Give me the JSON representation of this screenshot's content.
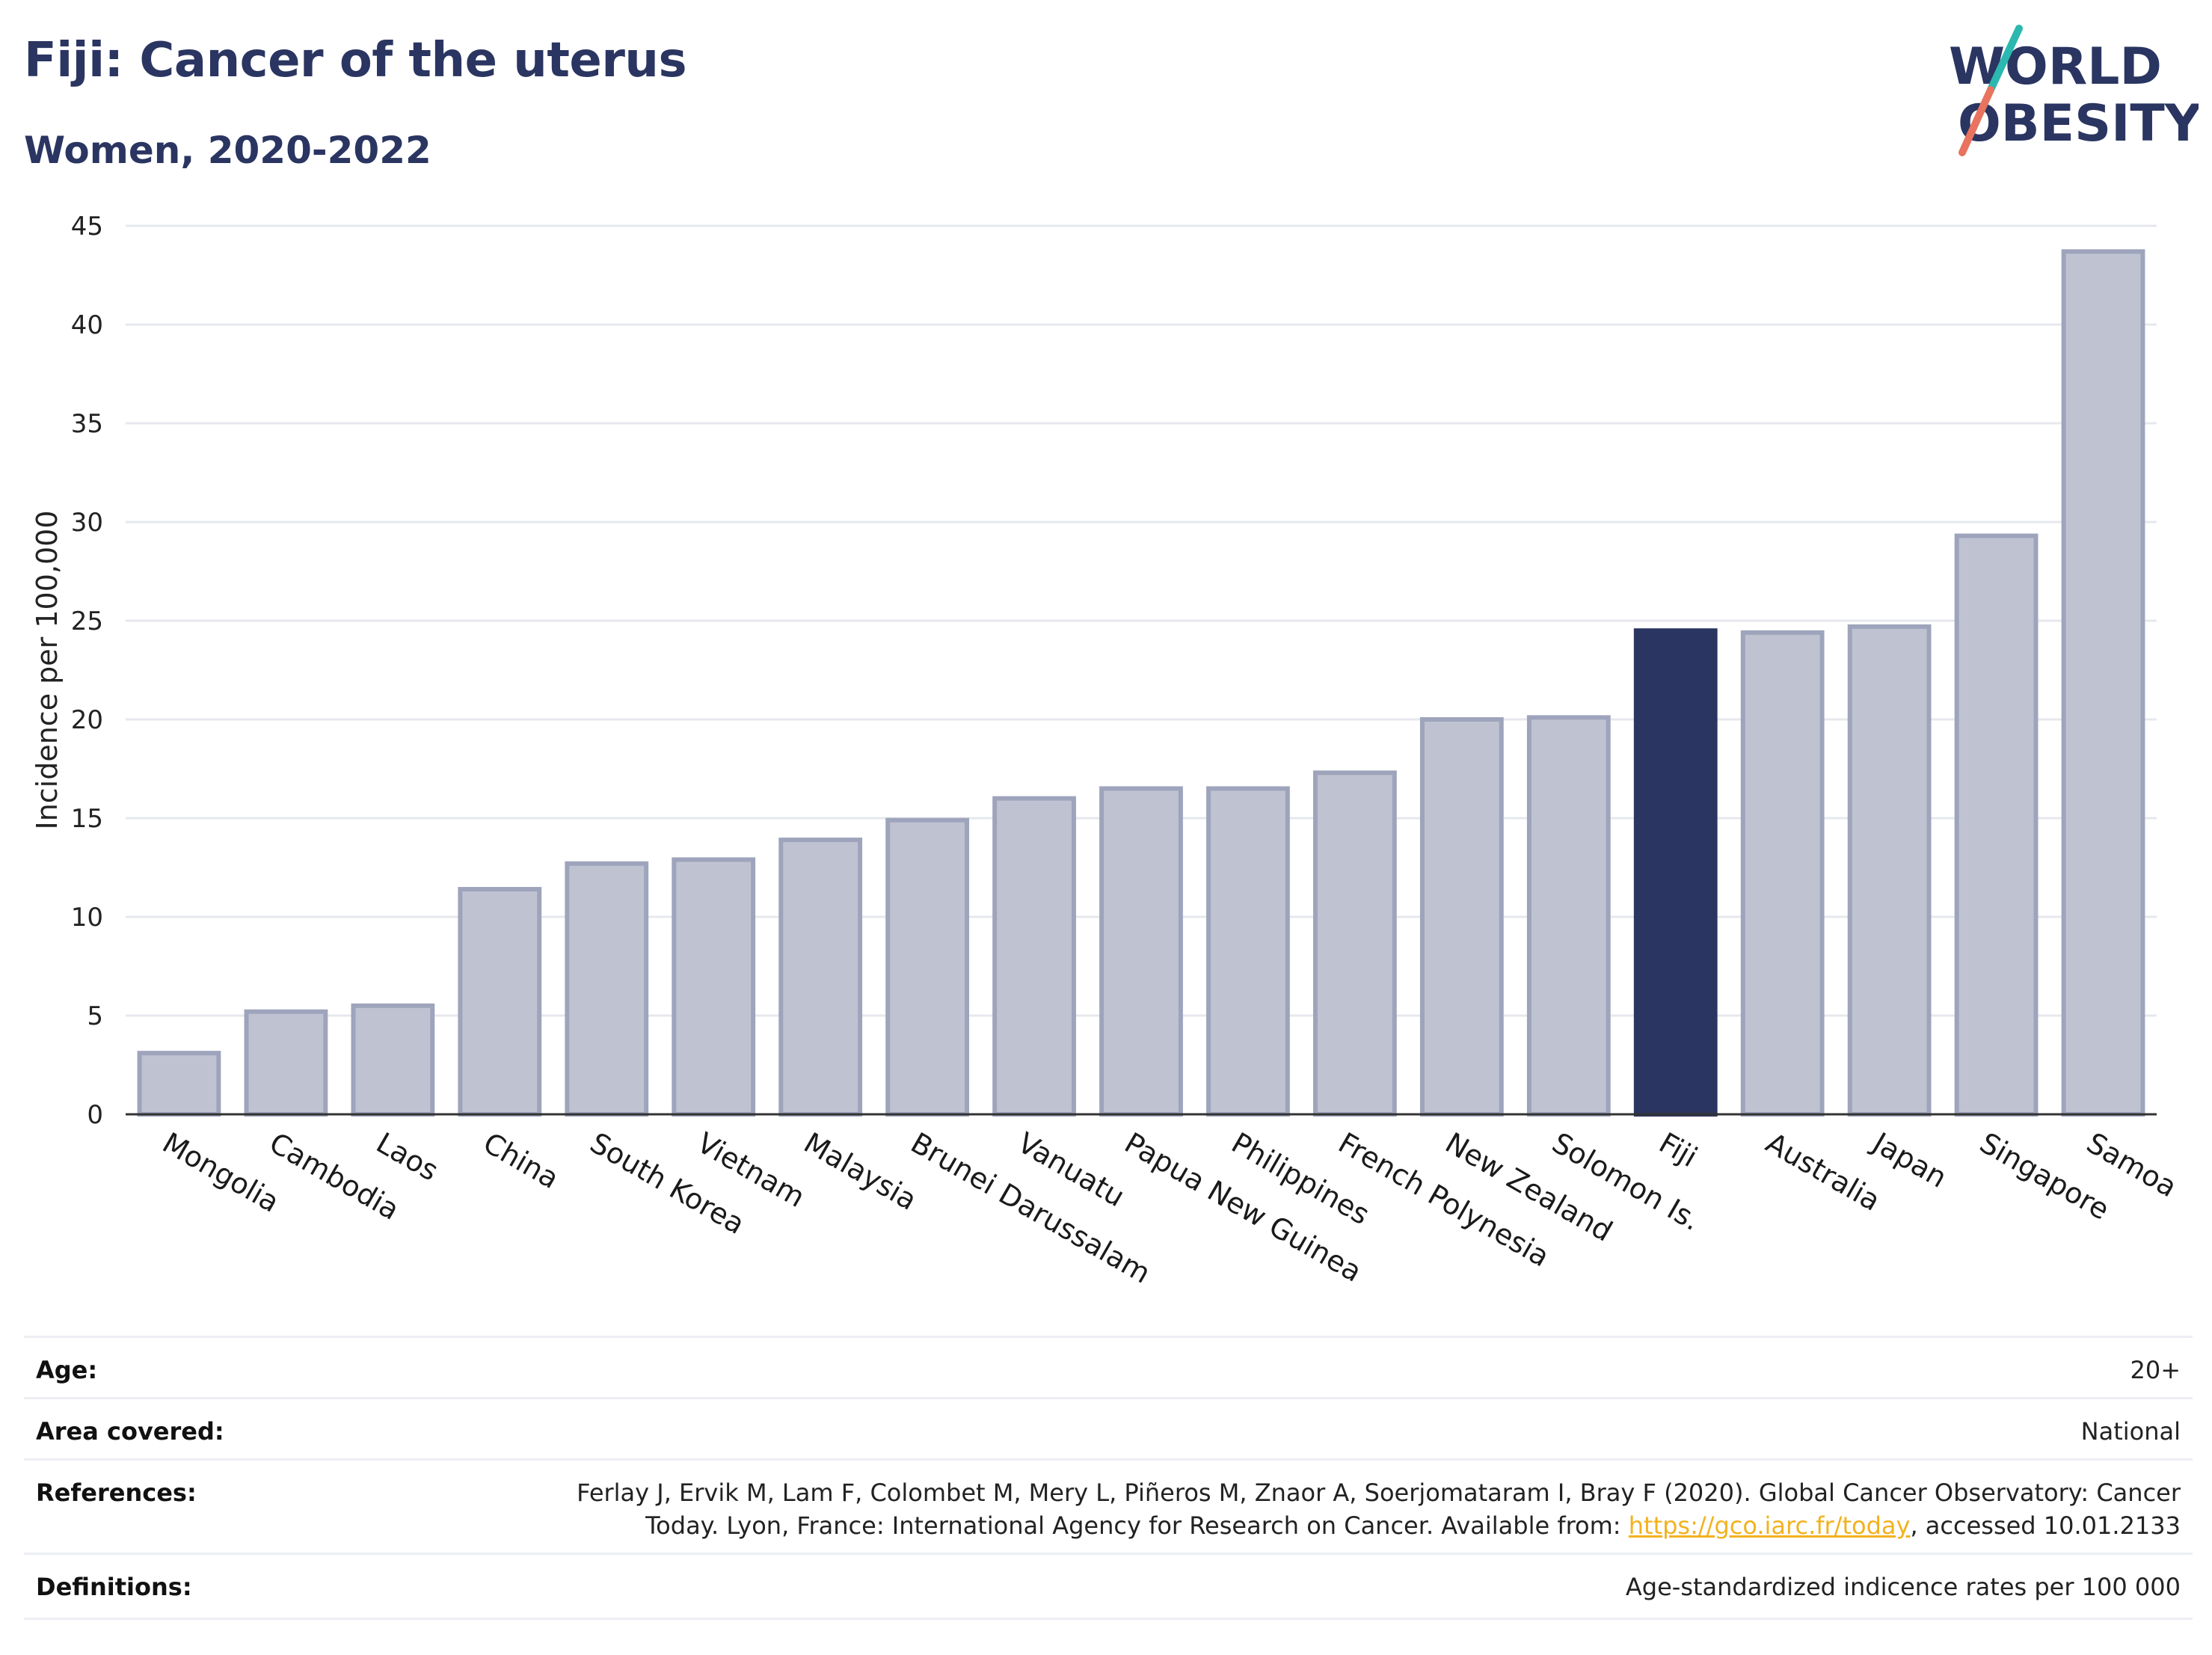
{
  "title": "Fiji: Cancer of the uterus",
  "subtitle": "Women, 2020-2022",
  "logo": {
    "line1": "WORLD",
    "line2": "OBESITY",
    "accent_colors": [
      "#2bb8b0",
      "#e8735f"
    ],
    "text_color": "#2a3561"
  },
  "colors": {
    "bar": "#bfc3d1",
    "bar_stroke": "#9ea4bb",
    "highlight": "#2a3561",
    "grid": "#e6e8ee",
    "axis": "#333333"
  },
  "chart_data": {
    "type": "bar",
    "ylabel": "Incidence per 100,000",
    "xlabel": "",
    "ylim": [
      0,
      45
    ],
    "yticks": [
      0,
      5,
      10,
      15,
      20,
      25,
      30,
      35,
      40,
      45
    ],
    "highlight": "Fiji",
    "categories": [
      "Mongolia",
      "Cambodia",
      "Laos",
      "China",
      "South Korea",
      "Vietnam",
      "Malaysia",
      "Brunei Darussalam",
      "Vanuatu",
      "Papua New Guinea",
      "Philippines",
      "French Polynesia",
      "New Zealand",
      "Solomon Is.",
      "Fiji",
      "Australia",
      "Japan",
      "Singapore",
      "Samoa"
    ],
    "values": [
      3.1,
      5.2,
      5.5,
      11.4,
      12.7,
      12.9,
      13.9,
      14.9,
      16.0,
      16.5,
      16.5,
      17.3,
      20.0,
      20.1,
      24.5,
      24.4,
      24.7,
      29.3,
      43.7
    ],
    "grid": true
  },
  "meta": [
    {
      "label": "Age:",
      "value": "20+"
    },
    {
      "label": "Area covered:",
      "value": "National"
    },
    {
      "label": "References:",
      "value_line1": "Ferlay J, Ervik M, Lam F, Colombet M, Mery L, Piñeros M, Znaor A, Soerjomataram I, Bray F (2020). Global Cancer Observatory: Cancer",
      "value_line2_pre": "Today. Lyon, France: International Agency for Research on Cancer. Available from: ",
      "value_link": "https://gco.iarc.fr/today",
      "value_line2_post": ", accessed 10.01.2133"
    },
    {
      "label": "Definitions:",
      "value": "Age-standardized indicence rates per 100 000"
    }
  ]
}
